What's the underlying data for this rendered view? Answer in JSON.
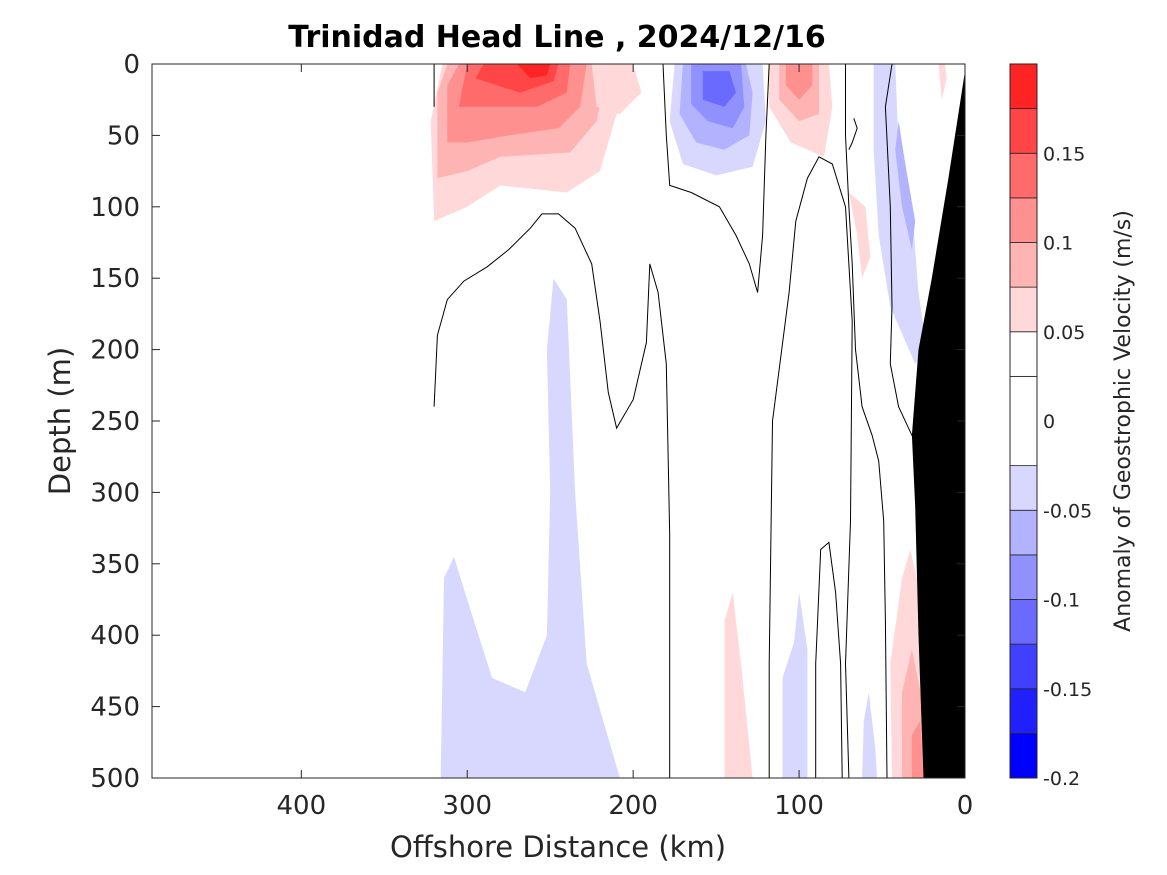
{
  "chart_data": {
    "type": "contour",
    "title": "Trinidad Head Line , 2024/12/16",
    "xlabel": "Offshore Distance (km)",
    "ylabel": "Depth (m)",
    "x_direction": "reversed",
    "y_direction": "reversed",
    "xlim": [
      0,
      490
    ],
    "ylim": [
      0,
      500
    ],
    "xticks": [
      "0",
      "100",
      "200",
      "300",
      "400"
    ],
    "yticks": [
      "0",
      "50",
      "100",
      "150",
      "200",
      "250",
      "300",
      "350",
      "400",
      "450",
      "500"
    ],
    "colorbar": {
      "label": "Anomaly of Geostrophic Velocity (m/s)",
      "range": [
        -0.2,
        0.2
      ],
      "tick_labels": [
        "0.15",
        "0.1",
        "0.05",
        "0",
        "-0.05",
        "-0.1",
        "-0.15",
        "-0.2"
      ],
      "tick_values": [
        0.15,
        0.1,
        0.05,
        0,
        -0.05,
        -0.1,
        -0.15,
        -0.2
      ],
      "levels": [
        -0.2,
        -0.175,
        -0.15,
        -0.125,
        -0.1,
        -0.075,
        -0.05,
        -0.025,
        0.025,
        0.05,
        0.075,
        0.1,
        0.125,
        0.15,
        0.175,
        0.2
      ],
      "colors": [
        "#0000ff",
        "#2020ff",
        "#4040ff",
        "#6a6aff",
        "#9090ff",
        "#b2b2ff",
        "#d8d8ff",
        "#ffffff",
        "#ffffff",
        "#ffd9d9",
        "#ffb4b4",
        "#ff9090",
        "#ff6a6a",
        "#ff4545",
        "#ff2424",
        "#ff0000"
      ]
    },
    "regions": [
      {
        "value": -0.05,
        "color": "#d8d8ff",
        "points": [
          [
            316,
            500
          ],
          [
            314,
            360
          ],
          [
            308,
            345
          ],
          [
            300,
            375
          ],
          [
            285,
            430
          ],
          [
            265,
            440
          ],
          [
            252,
            400
          ],
          [
            250,
            300
          ],
          [
            252,
            200
          ],
          [
            248,
            150
          ],
          [
            240,
            165
          ],
          [
            235,
            300
          ],
          [
            228,
            420
          ],
          [
            208,
            500
          ]
        ]
      },
      {
        "value": -0.05,
        "color": "#d8d8ff",
        "points": [
          [
            110,
            500
          ],
          [
            110,
            430
          ],
          [
            103,
            405
          ],
          [
            100,
            370
          ],
          [
            95,
            410
          ],
          [
            95,
            500
          ]
        ]
      },
      {
        "value": -0.05,
        "color": "#d8d8ff",
        "points": [
          [
            62,
            500
          ],
          [
            61,
            460
          ],
          [
            58,
            440
          ],
          [
            54,
            480
          ],
          [
            53,
            500
          ]
        ]
      },
      {
        "value": -0.05,
        "color": "#d8d8ff",
        "points": [
          [
            175,
            0
          ],
          [
            178,
            40
          ],
          [
            170,
            70
          ],
          [
            150,
            78
          ],
          [
            128,
            72
          ],
          [
            120,
            40
          ],
          [
            122,
            0
          ]
        ]
      },
      {
        "value": -0.075,
        "color": "#b2b2ff",
        "points": [
          [
            170,
            0
          ],
          [
            172,
            35
          ],
          [
            162,
            55
          ],
          [
            145,
            60
          ],
          [
            130,
            50
          ],
          [
            128,
            20
          ],
          [
            132,
            0
          ]
        ]
      },
      {
        "value": -0.1,
        "color": "#9090ff",
        "points": [
          [
            165,
            0
          ],
          [
            165,
            28
          ],
          [
            155,
            40
          ],
          [
            140,
            45
          ],
          [
            133,
            30
          ],
          [
            135,
            0
          ]
        ]
      },
      {
        "value": -0.125,
        "color": "#6a6aff",
        "points": [
          [
            158,
            5
          ],
          [
            158,
            25
          ],
          [
            145,
            30
          ],
          [
            138,
            20
          ],
          [
            142,
            5
          ]
        ]
      },
      {
        "value": -0.05,
        "color": "#d8d8ff",
        "points": [
          [
            42,
            0
          ],
          [
            40,
            60
          ],
          [
            32,
            100
          ],
          [
            28,
            160
          ],
          [
            23,
            200
          ],
          [
            30,
            210
          ],
          [
            45,
            170
          ],
          [
            52,
            120
          ],
          [
            55,
            60
          ],
          [
            55,
            0
          ]
        ]
      },
      {
        "value": -0.075,
        "color": "#b2b2ff",
        "points": [
          [
            40,
            40
          ],
          [
            36,
            70
          ],
          [
            30,
            110
          ],
          [
            32,
            130
          ],
          [
            38,
            100
          ],
          [
            42,
            60
          ]
        ]
      },
      {
        "value": 0.05,
        "color": "#ffd9d9",
        "points": [
          [
            320,
            110
          ],
          [
            322,
            40
          ],
          [
            315,
            0
          ],
          [
            200,
            0
          ],
          [
            210,
            35
          ],
          [
            220,
            75
          ],
          [
            240,
            90
          ],
          [
            280,
            85
          ],
          [
            300,
            100
          ]
        ]
      },
      {
        "value": 0.075,
        "color": "#ffb4b4",
        "points": [
          [
            318,
            80
          ],
          [
            318,
            20
          ],
          [
            312,
            0
          ],
          [
            215,
            0
          ],
          [
            222,
            40
          ],
          [
            238,
            62
          ],
          [
            280,
            65
          ],
          [
            300,
            75
          ]
        ]
      },
      {
        "value": 0.1,
        "color": "#ff9090",
        "points": [
          [
            312,
            55
          ],
          [
            312,
            15
          ],
          [
            305,
            0
          ],
          [
            228,
            0
          ],
          [
            232,
            30
          ],
          [
            245,
            45
          ],
          [
            275,
            50
          ],
          [
            300,
            55
          ]
        ]
      },
      {
        "value": 0.125,
        "color": "#ff6a6a",
        "points": [
          [
            305,
            30
          ],
          [
            300,
            0
          ],
          [
            238,
            0
          ],
          [
            240,
            20
          ],
          [
            258,
            30
          ],
          [
            285,
            30
          ]
        ]
      },
      {
        "value": 0.15,
        "color": "#ff4545",
        "points": [
          [
            295,
            10
          ],
          [
            290,
            0
          ],
          [
            245,
            0
          ],
          [
            248,
            12
          ],
          [
            268,
            20
          ],
          [
            282,
            15
          ]
        ]
      },
      {
        "value": 0.175,
        "color": "#ff2424",
        "points": [
          [
            270,
            0
          ],
          [
            250,
            0
          ],
          [
            252,
            8
          ],
          [
            262,
            10
          ]
        ]
      },
      {
        "value": 0.05,
        "color": "#ffd9d9",
        "points": [
          [
            225,
            0
          ],
          [
            222,
            30
          ],
          [
            208,
            35
          ],
          [
            195,
            20
          ],
          [
            200,
            0
          ]
        ]
      },
      {
        "value": 0.05,
        "color": "#ffd9d9",
        "points": [
          [
            118,
            0
          ],
          [
            118,
            30
          ],
          [
            105,
            55
          ],
          [
            85,
            65
          ],
          [
            80,
            30
          ],
          [
            82,
            0
          ]
        ]
      },
      {
        "value": 0.075,
        "color": "#ffb4b4",
        "points": [
          [
            112,
            0
          ],
          [
            112,
            25
          ],
          [
            100,
            40
          ],
          [
            88,
            35
          ],
          [
            88,
            0
          ]
        ]
      },
      {
        "value": 0.1,
        "color": "#ff9090",
        "points": [
          [
            108,
            0
          ],
          [
            108,
            15
          ],
          [
            100,
            25
          ],
          [
            92,
            15
          ],
          [
            92,
            0
          ]
        ]
      },
      {
        "value": 0.05,
        "color": "#ffd9d9",
        "points": [
          [
            70,
            90
          ],
          [
            65,
            120
          ],
          [
            62,
            150
          ],
          [
            57,
            135
          ],
          [
            60,
            100
          ]
        ]
      },
      {
        "value": 0.05,
        "color": "#ffd9d9",
        "points": [
          [
            145,
            500
          ],
          [
            145,
            390
          ],
          [
            140,
            370
          ],
          [
            135,
            420
          ],
          [
            128,
            500
          ]
        ]
      },
      {
        "value": 0.05,
        "color": "#ffd9d9",
        "points": [
          [
            44,
            500
          ],
          [
            45,
            420
          ],
          [
            38,
            360
          ],
          [
            33,
            340
          ],
          [
            25,
            380
          ],
          [
            22,
            500
          ]
        ]
      },
      {
        "value": 0.075,
        "color": "#ffb4b4",
        "points": [
          [
            38,
            500
          ],
          [
            38,
            440
          ],
          [
            32,
            410
          ],
          [
            25,
            450
          ],
          [
            24,
            500
          ]
        ]
      },
      {
        "value": 0.1,
        "color": "#ff9090",
        "points": [
          [
            32,
            500
          ],
          [
            32,
            470
          ],
          [
            27,
            460
          ],
          [
            25,
            500
          ]
        ]
      },
      {
        "value": 0.05,
        "color": "#ffd9d9",
        "points": [
          [
            16,
            0
          ],
          [
            14,
            25
          ],
          [
            11,
            10
          ],
          [
            12,
            0
          ]
        ]
      }
    ],
    "zero_contours": [
      [
        [
          320,
          240
        ],
        [
          318,
          190
        ],
        [
          312,
          165
        ],
        [
          302,
          152
        ],
        [
          288,
          142
        ],
        [
          275,
          130
        ],
        [
          262,
          115
        ],
        [
          255,
          105
        ],
        [
          245,
          105
        ],
        [
          235,
          115
        ],
        [
          225,
          140
        ],
        [
          220,
          180
        ],
        [
          215,
          230
        ],
        [
          210,
          255
        ],
        [
          200,
          235
        ],
        [
          192,
          195
        ],
        [
          190,
          140
        ],
        [
          185,
          160
        ],
        [
          180,
          210
        ],
        [
          178,
          330
        ],
        [
          178,
          500
        ]
      ],
      [
        [
          320,
          30
        ],
        [
          320,
          0
        ]
      ],
      [
        [
          182,
          0
        ],
        [
          180,
          50
        ],
        [
          178,
          85
        ],
        [
          165,
          90
        ],
        [
          148,
          100
        ],
        [
          138,
          120
        ],
        [
          130,
          140
        ],
        [
          125,
          160
        ],
        [
          122,
          120
        ],
        [
          120,
          50
        ],
        [
          118,
          0
        ]
      ],
      [
        [
          118,
          500
        ],
        [
          118,
          420
        ],
        [
          116,
          250
        ],
        [
          106,
          160
        ],
        [
          102,
          110
        ],
        [
          95,
          80
        ],
        [
          88,
          65
        ],
        [
          80,
          70
        ],
        [
          72,
          100
        ],
        [
          68,
          180
        ],
        [
          69,
          320
        ],
        [
          72,
          420
        ],
        [
          70,
          500
        ]
      ],
      [
        [
          90,
          500
        ],
        [
          90,
          420
        ],
        [
          87,
          340
        ],
        [
          82,
          335
        ],
        [
          78,
          370
        ],
        [
          75,
          420
        ],
        [
          74,
          500
        ]
      ],
      [
        [
          47,
          500
        ],
        [
          48,
          390
        ],
        [
          49,
          320
        ],
        [
          52,
          278
        ],
        [
          56,
          260
        ],
        [
          62,
          240
        ],
        [
          66,
          200
        ],
        [
          68,
          140
        ],
        [
          70,
          100
        ],
        [
          72,
          50
        ],
        [
          72,
          0
        ]
      ],
      [
        [
          70,
          60
        ],
        [
          68,
          55
        ],
        [
          65,
          45
        ],
        [
          67,
          38
        ]
      ],
      [
        [
          44,
          0
        ],
        [
          48,
          30
        ],
        [
          45,
          100
        ],
        [
          44,
          170
        ],
        [
          45,
          210
        ],
        [
          40,
          240
        ],
        [
          32,
          260
        ],
        [
          26,
          270
        ]
      ]
    ],
    "terrain": {
      "color": "#000000",
      "points": [
        [
          0,
          0
        ],
        [
          0,
          500
        ],
        [
          25,
          500
        ],
        [
          28,
          400
        ],
        [
          30,
          310
        ],
        [
          32,
          260
        ],
        [
          28,
          200
        ],
        [
          20,
          150
        ],
        [
          10,
          80
        ],
        [
          0,
          5
        ]
      ]
    }
  }
}
